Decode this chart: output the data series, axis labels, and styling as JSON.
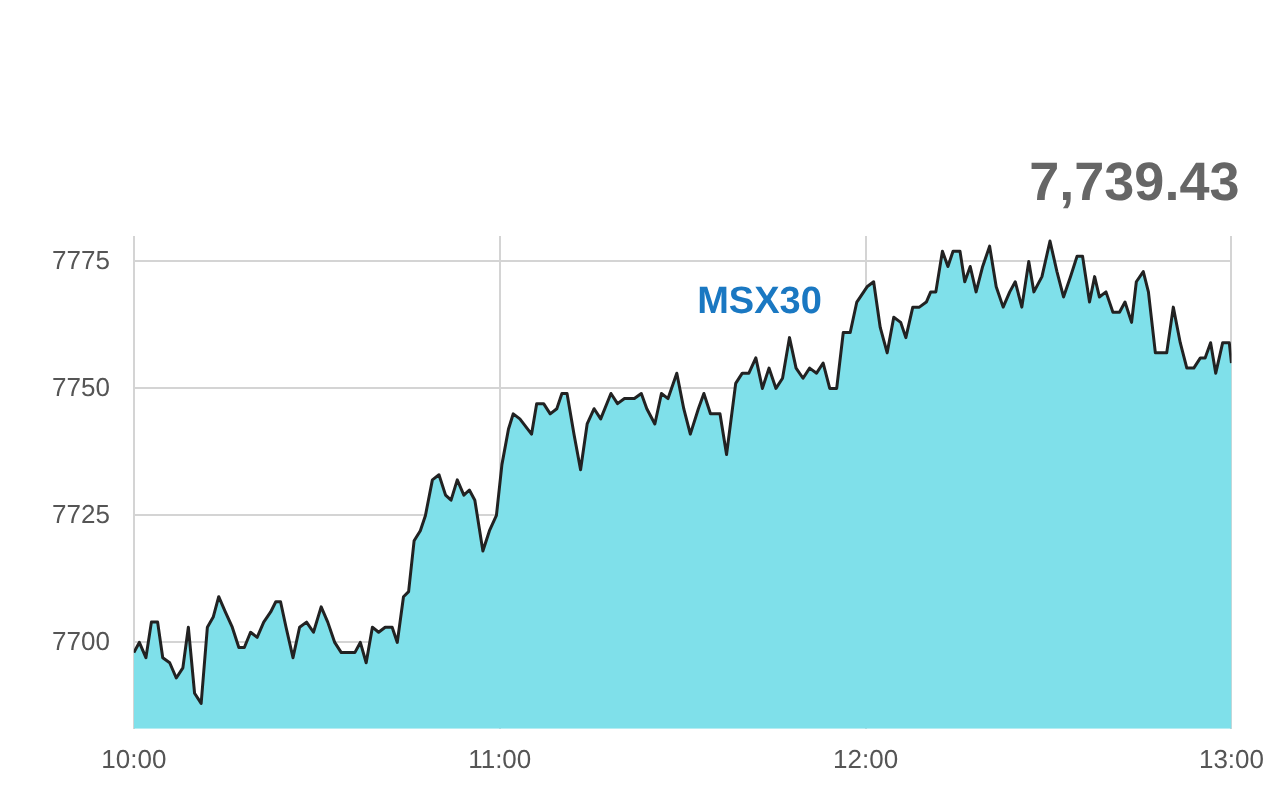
{
  "chart_data": {
    "type": "area",
    "annotations": [
      "7,739.43"
    ],
    "x": [
      10.0,
      10.015,
      10.033,
      10.048,
      10.065,
      10.079,
      10.098,
      10.116,
      10.134,
      10.149,
      10.166,
      10.184,
      10.201,
      10.217,
      10.232,
      10.25,
      10.269,
      10.287,
      10.302,
      10.319,
      10.337,
      10.355,
      10.374,
      10.388,
      10.401,
      10.416,
      10.435,
      10.453,
      10.472,
      10.491,
      10.512,
      10.53,
      10.549,
      10.567,
      10.586,
      10.604,
      10.619,
      10.635,
      10.652,
      10.669,
      10.687,
      10.706,
      10.72,
      10.737,
      10.751,
      10.766,
      10.783,
      10.797,
      10.816,
      10.834,
      10.852,
      10.867,
      10.884,
      10.902,
      10.917,
      10.932,
      10.954,
      10.972,
      10.991,
      11.006,
      11.024,
      11.037,
      11.055,
      11.087,
      11.101,
      11.12,
      11.138,
      11.156,
      11.17,
      11.184,
      11.203,
      11.221,
      11.239,
      11.258,
      11.276,
      11.304,
      11.322,
      11.341,
      11.368,
      11.387,
      11.402,
      11.424,
      11.442,
      11.46,
      11.484,
      11.503,
      11.521,
      11.543,
      11.558,
      11.576,
      11.602,
      11.62,
      11.645,
      11.663,
      11.681,
      11.7,
      11.718,
      11.736,
      11.755,
      11.773,
      11.792,
      11.81,
      11.829,
      11.847,
      11.866,
      11.884,
      11.902,
      11.921,
      11.939,
      11.958,
      11.976,
      12.004,
      12.022,
      12.04,
      12.059,
      12.077,
      12.096,
      12.11,
      12.129,
      12.147,
      12.166,
      12.178,
      12.192,
      12.21,
      12.225,
      12.239,
      12.258,
      12.271,
      12.286,
      12.302,
      12.32,
      12.339,
      12.357,
      12.376,
      12.394,
      12.409,
      12.427,
      12.446,
      12.46,
      12.482,
      12.504,
      12.523,
      12.541,
      12.56,
      12.578,
      12.593,
      12.612,
      12.626,
      12.639,
      12.657,
      12.676,
      12.694,
      12.709,
      12.727,
      12.74,
      12.759,
      12.773,
      12.792,
      12.823,
      12.841,
      12.86,
      12.878,
      12.897,
      12.915,
      12.928,
      12.943,
      12.957,
      12.976,
      12.994,
      13.0
    ],
    "series": [
      {
        "name": "MSX30",
        "color": "#7fe0ea",
        "values": [
          7698,
          7700,
          7697,
          7704,
          7704,
          7697,
          7696,
          7693,
          7695,
          7703,
          7690,
          7688,
          7703,
          7705,
          7709,
          7706,
          7703,
          7699,
          7699,
          7702,
          7701,
          7704,
          7706,
          7708,
          7708,
          7703,
          7697,
          7703,
          7704,
          7702,
          7707,
          7704,
          7700,
          7698,
          7698,
          7698,
          7700,
          7696,
          7703,
          7702,
          7703,
          7703,
          7700,
          7709,
          7710,
          7720,
          7722,
          7725,
          7732,
          7733,
          7729,
          7728,
          7732,
          7729,
          7730,
          7728,
          7718,
          7722,
          7725,
          7735,
          7742,
          7745,
          7744,
          7741,
          7747,
          7747,
          7745,
          7746,
          7749,
          7749,
          7741,
          7734,
          7743,
          7746,
          7744,
          7749,
          7747,
          7748,
          7748,
          7749,
          7746,
          7743,
          7749,
          7748,
          7753,
          7746,
          7741,
          7746,
          7749,
          7745,
          7745,
          7737,
          7751,
          7753,
          7753,
          7756,
          7750,
          7754,
          7750,
          7752,
          7760,
          7754,
          7752,
          7754,
          7753,
          7755,
          7750,
          7750,
          7761,
          7761,
          7767,
          7770,
          7771,
          7762,
          7757,
          7764,
          7763,
          7760,
          7766,
          7766,
          7767,
          7769,
          7769,
          7777,
          7774,
          7777,
          7777,
          7771,
          7774,
          7769,
          7774,
          7778,
          7770,
          7766,
          7769,
          7771,
          7766,
          7775,
          7769,
          7772,
          7779,
          7773,
          7768,
          7772,
          7776,
          7776,
          7767,
          7772,
          7768,
          7769,
          7765,
          7765,
          7767,
          7763,
          7771,
          7773,
          7769,
          7757,
          7757,
          7766,
          7759,
          7754,
          7754,
          7756,
          7756,
          7759,
          7753,
          7759,
          7759,
          7755
        ]
      }
    ],
    "xlim": [
      10,
      13
    ],
    "xticks": [
      {
        "value": 10,
        "label": "10:00"
      },
      {
        "value": 11,
        "label": "11:00"
      },
      {
        "value": 12,
        "label": "12:00"
      },
      {
        "value": 13,
        "label": "13:00"
      }
    ],
    "ylim": [
      7683,
      7780
    ],
    "yticks": [
      7700,
      7725,
      7750,
      7775
    ],
    "grid": true,
    "legend": false
  }
}
